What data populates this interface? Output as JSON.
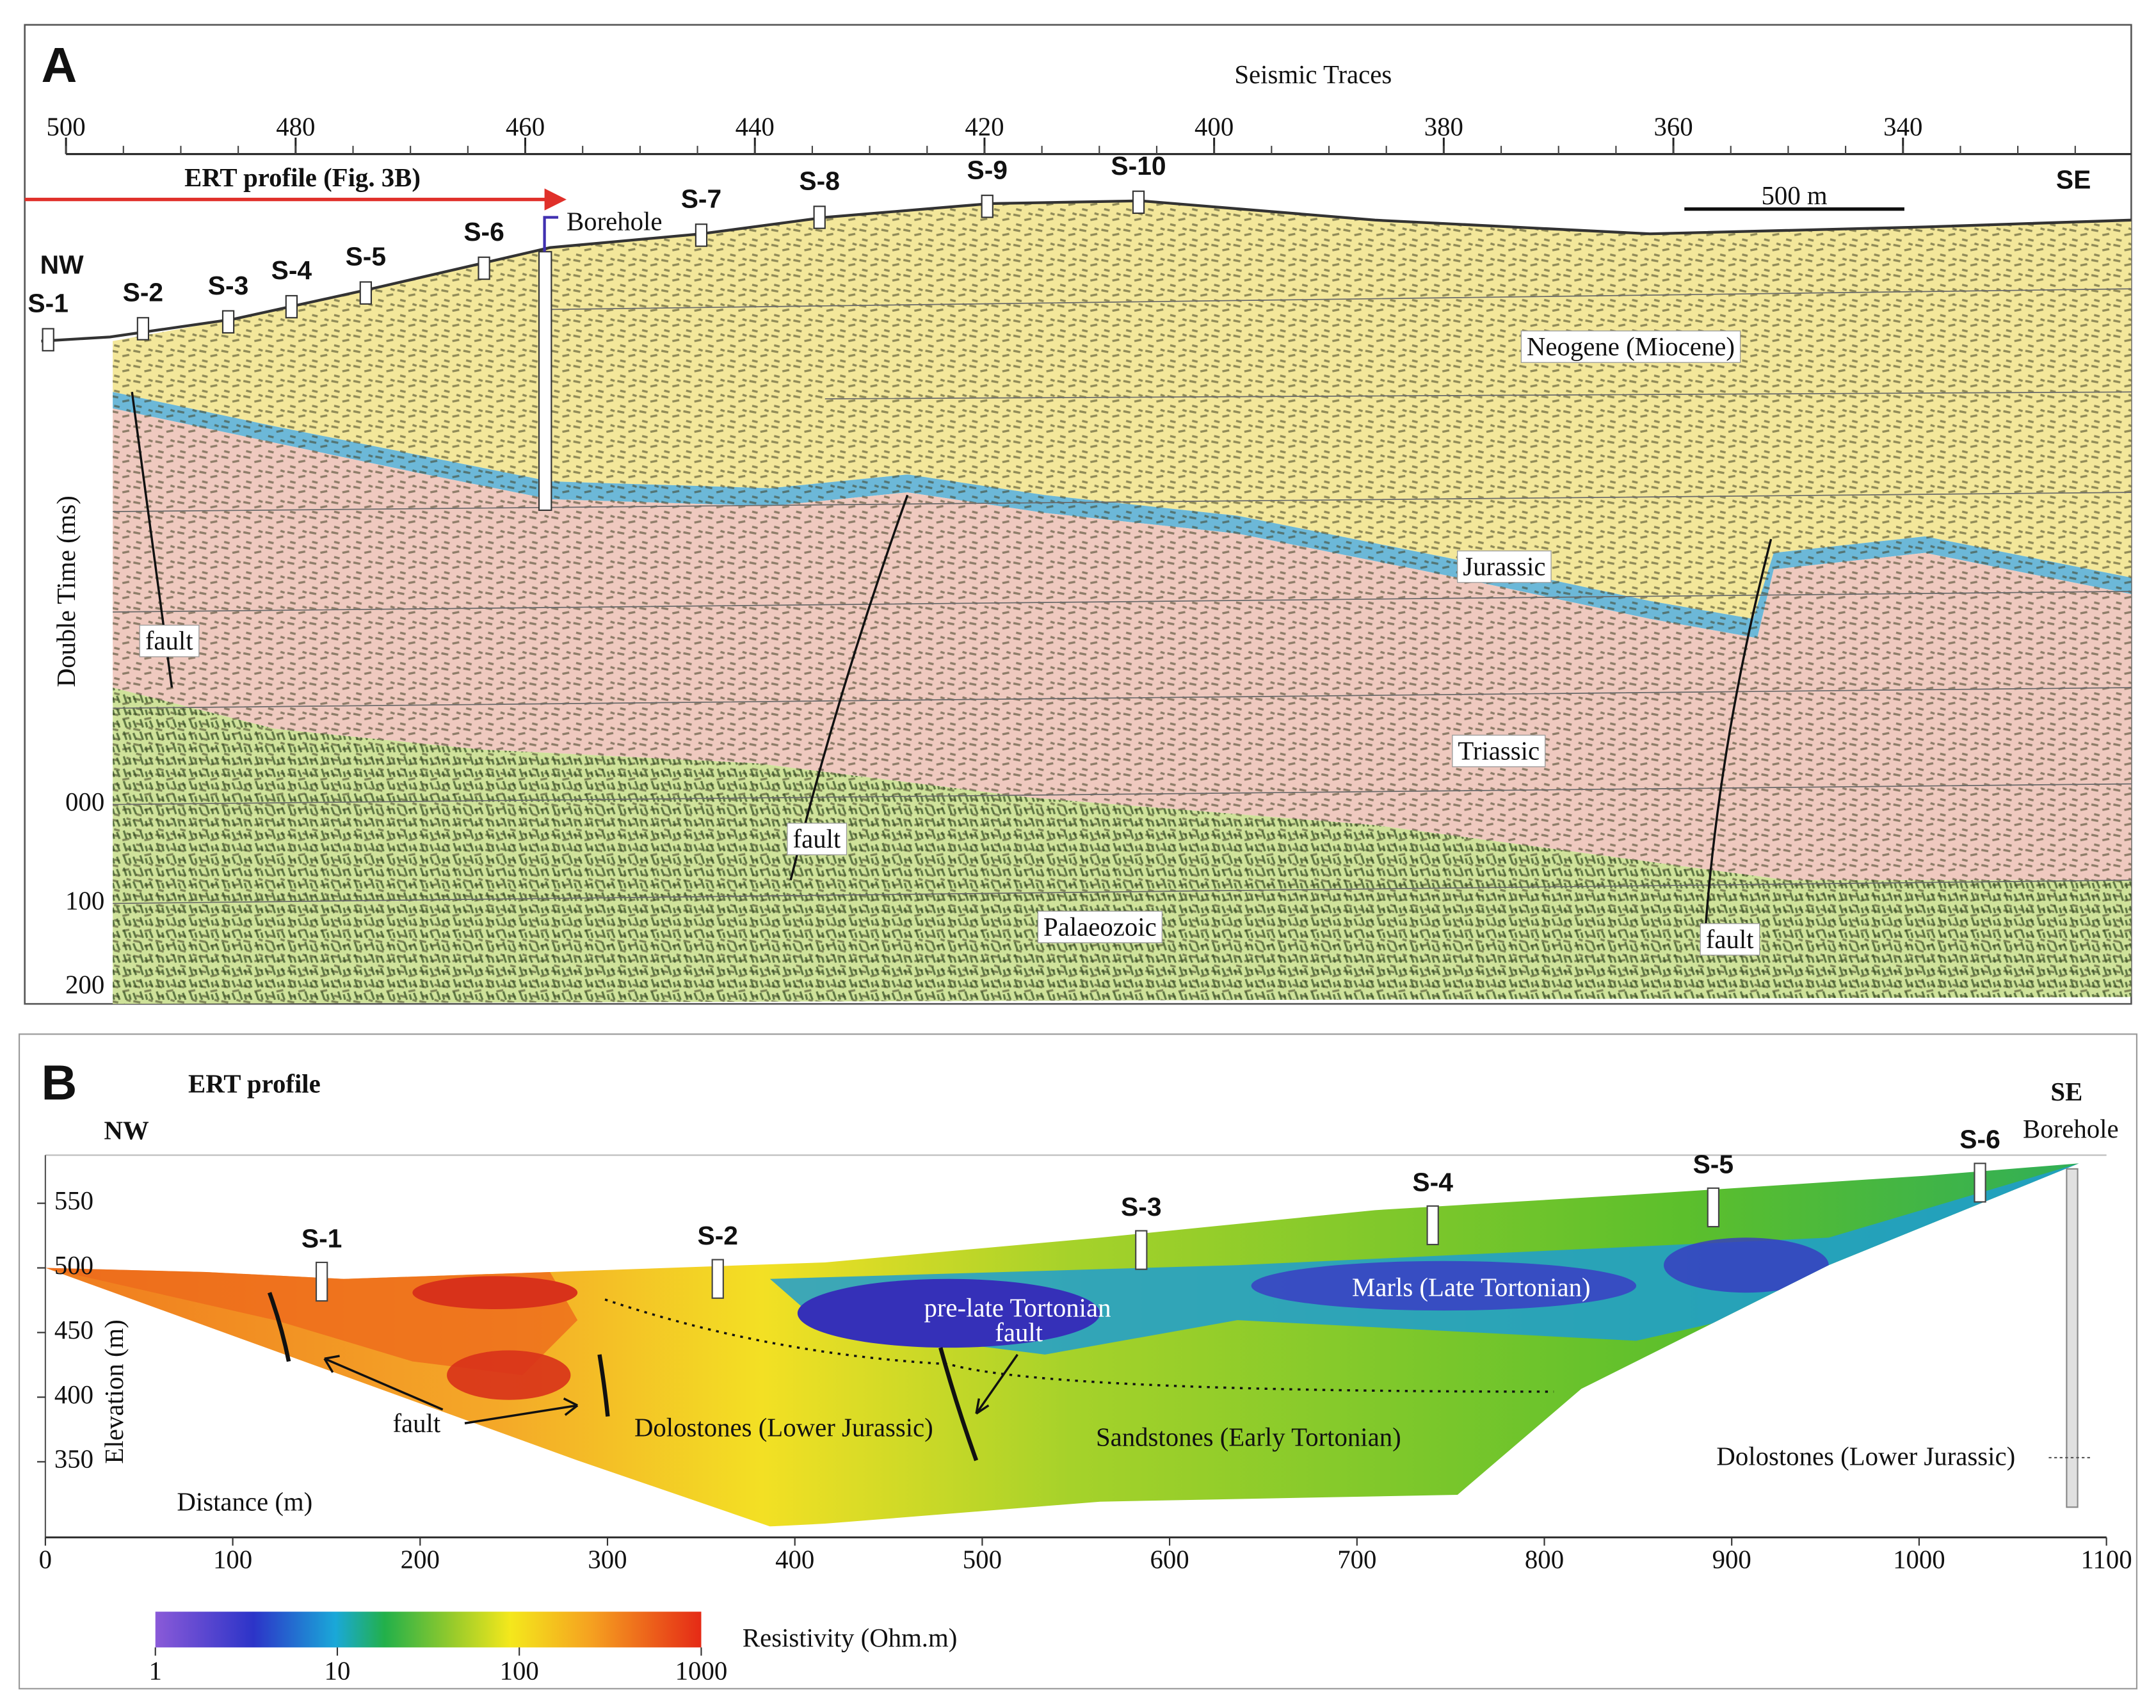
{
  "panel_a": {
    "label": "A",
    "title": "Seismic Traces",
    "trace_ticks": [
      500,
      480,
      460,
      440,
      420,
      400,
      380,
      360,
      340
    ],
    "time_axis_label": "Double Time (ms)",
    "time_ticks": [
      "000",
      "100",
      "200"
    ],
    "ert_arrow_label": "ERT profile (Fig. 3B)",
    "nw": "NW",
    "se": "SE",
    "scale_bar": "500 m",
    "borehole": "Borehole",
    "stations": [
      "S-1",
      "S-2",
      "S-3",
      "S-4",
      "S-5",
      "S-6",
      "S-7",
      "S-8",
      "S-9",
      "S-10"
    ],
    "units": [
      "Neogene (Miocene)",
      "Jurassic",
      "Triassic",
      "Palaeozoic"
    ],
    "fault_labels": [
      "fault",
      "fault",
      "fault"
    ]
  },
  "panel_b": {
    "label": "B",
    "title": "ERT profile",
    "nw": "NW",
    "se": "SE",
    "borehole": "Borehole",
    "stations": [
      "S-1",
      "S-2",
      "S-3",
      "S-4",
      "S-5",
      "S-6"
    ],
    "x_axis_label": "Distance (m)",
    "x_ticks": [
      0,
      100,
      200,
      300,
      400,
      500,
      600,
      700,
      800,
      900,
      1000,
      1100
    ],
    "y_axis_label": "Elevation (m)",
    "y_ticks": [
      550,
      500,
      450,
      400,
      350
    ],
    "annotations": [
      "pre-late Tortonian",
      "fault",
      "Marls (Late Tortonian)",
      "fault",
      "Dolostones (Lower Jurassic)",
      "Sandstones (Early Tortonian)",
      "Dolostones (Lower Jurassic)"
    ],
    "colorbar": {
      "label": "Resistivity (Ohm.m)",
      "ticks": [
        1,
        10,
        100,
        1000
      ]
    }
  }
}
